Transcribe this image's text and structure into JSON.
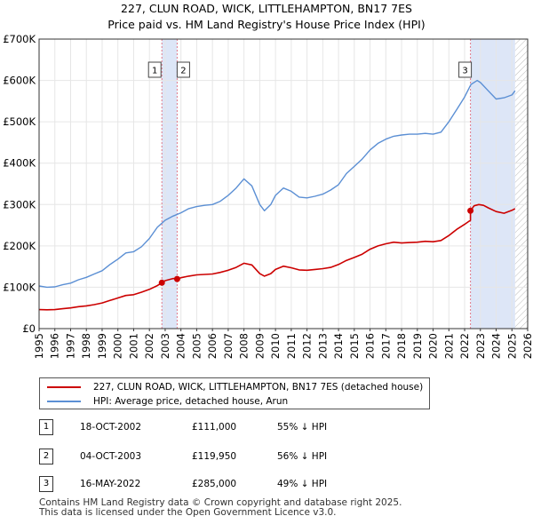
{
  "header": {
    "title": "227, CLUN ROAD, WICK, LITTLEHAMPTON, BN17 7ES",
    "subtitle": "Price paid vs. HM Land Registry's House Price Index (HPI)"
  },
  "chart_data": {
    "type": "line",
    "x_range": [
      1995,
      2026
    ],
    "ylim": [
      0,
      700000
    ],
    "y_ticks": [
      {
        "value": 0,
        "label": "£0"
      },
      {
        "value": 100000,
        "label": "£100K"
      },
      {
        "value": 200000,
        "label": "£200K"
      },
      {
        "value": 300000,
        "label": "£300K"
      },
      {
        "value": 400000,
        "label": "£400K"
      },
      {
        "value": 500000,
        "label": "£500K"
      },
      {
        "value": 600000,
        "label": "£600K"
      },
      {
        "value": 700000,
        "label": "£700K"
      }
    ],
    "x_ticks": [
      "1995",
      "1996",
      "1997",
      "1998",
      "1999",
      "2000",
      "2001",
      "2002",
      "2003",
      "2004",
      "2005",
      "2006",
      "2007",
      "2008",
      "2009",
      "2010",
      "2011",
      "2012",
      "2013",
      "2014",
      "2015",
      "2016",
      "2017",
      "2018",
      "2019",
      "2020",
      "2021",
      "2022",
      "2023",
      "2024",
      "2025",
      "2026"
    ],
    "colors": {
      "property": "#cc0000",
      "hpi": "#5b8fd4",
      "shade": "#dde6f7",
      "vline": "#e07a8a",
      "hatch": "#bbbbbb",
      "grid": "#e6e6e6"
    },
    "series": [
      {
        "name": "hpi",
        "x": [
          1995.0,
          1995.5,
          1996.0,
          1996.5,
          1997.0,
          1997.5,
          1998.0,
          1998.5,
          1999.0,
          1999.5,
          2000.0,
          2000.5,
          2001.0,
          2001.5,
          2002.0,
          2002.5,
          2003.0,
          2003.5,
          2004.0,
          2004.5,
          2005.0,
          2005.5,
          2006.0,
          2006.5,
          2007.0,
          2007.5,
          2008.0,
          2008.5,
          2009.0,
          2009.3,
          2009.7,
          2010.0,
          2010.5,
          2011.0,
          2011.5,
          2012.0,
          2012.5,
          2013.0,
          2013.5,
          2014.0,
          2014.5,
          2015.0,
          2015.5,
          2016.0,
          2016.5,
          2017.0,
          2017.5,
          2018.0,
          2018.5,
          2019.0,
          2019.5,
          2020.0,
          2020.5,
          2021.0,
          2021.5,
          2022.0,
          2022.4,
          2022.8,
          2023.0,
          2023.5,
          2024.0,
          2024.5,
          2025.0,
          2025.2
        ],
        "values": [
          103000,
          100000,
          101000,
          106000,
          110000,
          118000,
          124000,
          132000,
          140000,
          155000,
          168000,
          183000,
          186000,
          198000,
          218000,
          245000,
          262000,
          272000,
          280000,
          290000,
          295000,
          298000,
          300000,
          308000,
          322000,
          340000,
          362000,
          345000,
          300000,
          285000,
          300000,
          322000,
          340000,
          332000,
          318000,
          316000,
          320000,
          325000,
          335000,
          348000,
          375000,
          392000,
          410000,
          432000,
          448000,
          458000,
          465000,
          468000,
          470000,
          470000,
          472000,
          470000,
          475000,
          500000,
          530000,
          560000,
          590000,
          600000,
          595000,
          575000,
          555000,
          558000,
          565000,
          575000
        ]
      },
      {
        "name": "property",
        "x": [
          1995.0,
          1995.5,
          1996.0,
          1996.5,
          1997.0,
          1997.5,
          1998.0,
          1998.5,
          1999.0,
          1999.5,
          2000.0,
          2000.5,
          2001.0,
          2001.5,
          2002.0,
          2002.5,
          2002.8,
          2003.0,
          2003.5,
          2003.76,
          2004.0,
          2004.5,
          2005.0,
          2005.5,
          2006.0,
          2006.5,
          2007.0,
          2007.5,
          2008.0,
          2008.5,
          2009.0,
          2009.3,
          2009.7,
          2010.0,
          2010.5,
          2011.0,
          2011.5,
          2012.0,
          2012.5,
          2013.0,
          2013.5,
          2014.0,
          2014.5,
          2015.0,
          2015.5,
          2016.0,
          2016.5,
          2017.0,
          2017.5,
          2018.0,
          2018.5,
          2019.0,
          2019.5,
          2020.0,
          2020.5,
          2021.0,
          2021.5,
          2022.0,
          2022.37,
          2022.37,
          2022.6,
          2022.9,
          2023.2,
          2023.5,
          2024.0,
          2024.5,
          2025.0,
          2025.2
        ],
        "values": [
          46000,
          45500,
          46000,
          48000,
          50000,
          53000,
          55000,
          58000,
          62000,
          68000,
          74000,
          80000,
          82000,
          88000,
          95000,
          104000,
          111000,
          116000,
          121000,
          119950,
          123000,
          127000,
          130000,
          131000,
          132000,
          136000,
          141000,
          148000,
          158000,
          154000,
          133000,
          127000,
          133000,
          143000,
          151000,
          147000,
          142000,
          141000,
          143000,
          145000,
          148000,
          155000,
          165000,
          172000,
          180000,
          192000,
          200000,
          205000,
          209000,
          207000,
          208000,
          209000,
          211000,
          210000,
          213000,
          225000,
          240000,
          252000,
          262000,
          285000,
          297000,
          300000,
          298000,
          292000,
          283000,
          279000,
          286000,
          290000
        ]
      }
    ],
    "sales": [
      {
        "label": "1",
        "x": 2002.79,
        "value": 111000
      },
      {
        "label": "2",
        "x": 2003.76,
        "value": 119950
      },
      {
        "label": "3",
        "x": 2022.37,
        "value": 285000
      }
    ],
    "sale_shades": [
      [
        2002.79,
        2003.76
      ],
      [
        2022.37,
        2025.2
      ]
    ],
    "hatch_from": 2025.2
  },
  "legend": {
    "property_label": "227, CLUN ROAD, WICK, LITTLEHAMPTON, BN17 7ES (detached house)",
    "hpi_label": "HPI: Average price, detached house, Arun"
  },
  "transactions": [
    {
      "num": "1",
      "date": "18-OCT-2002",
      "price": "£111,000",
      "hpi": "55% ↓ HPI"
    },
    {
      "num": "2",
      "date": "04-OCT-2003",
      "price": "£119,950",
      "hpi": "56% ↓ HPI"
    },
    {
      "num": "3",
      "date": "16-MAY-2022",
      "price": "£285,000",
      "hpi": "49% ↓ HPI"
    }
  ],
  "footer": {
    "line1": "Contains HM Land Registry data © Crown copyright and database right 2025.",
    "line2": "This data is licensed under the Open Government Licence v3.0."
  }
}
